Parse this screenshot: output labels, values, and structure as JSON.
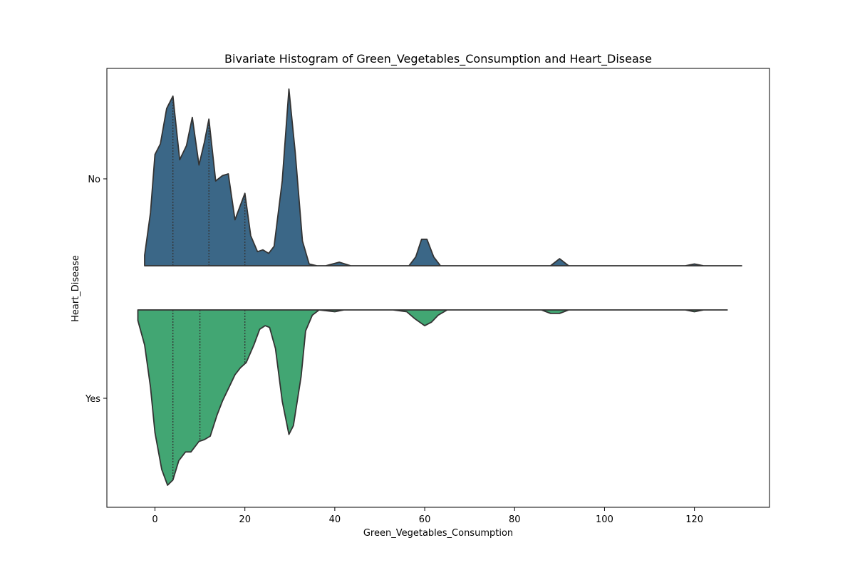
{
  "chart_data": {
    "type": "violin",
    "title": "Bivariate Histogram of Green_Vegetables_Consumption and Heart_Disease",
    "xlabel": "Green_Vegetables_Consumption",
    "ylabel": "Heart_Disease",
    "xlim": [
      -10.7,
      136.7
    ],
    "x_ticks": [
      0,
      20,
      40,
      60,
      80,
      100,
      120
    ],
    "categories": [
      "No",
      "Yes"
    ],
    "grid": false,
    "series": [
      {
        "name": "No",
        "side": "upper",
        "color": "#3b6787",
        "x_range": [
          -2.3,
          130.5
        ],
        "quartiles": [
          4,
          12,
          20
        ],
        "density": [
          [
            -2.3,
            0.06
          ],
          [
            -1.0,
            0.3
          ],
          [
            0.0,
            0.63
          ],
          [
            1.2,
            0.69
          ],
          [
            2.6,
            0.89
          ],
          [
            4.0,
            0.96
          ],
          [
            5.5,
            0.6
          ],
          [
            7.0,
            0.68
          ],
          [
            8.3,
            0.84
          ],
          [
            9.8,
            0.57
          ],
          [
            11.0,
            0.7
          ],
          [
            12.0,
            0.83
          ],
          [
            13.5,
            0.48
          ],
          [
            15.0,
            0.51
          ],
          [
            16.3,
            0.52
          ],
          [
            17.8,
            0.26
          ],
          [
            20.0,
            0.41
          ],
          [
            21.3,
            0.17
          ],
          [
            22.8,
            0.08
          ],
          [
            24.0,
            0.09
          ],
          [
            25.3,
            0.07
          ],
          [
            26.5,
            0.11
          ],
          [
            28.3,
            0.48
          ],
          [
            29.8,
            1.0
          ],
          [
            31.2,
            0.64
          ],
          [
            32.8,
            0.14
          ],
          [
            34.3,
            0.01
          ],
          [
            36.0,
            0.0
          ],
          [
            38.0,
            0.0
          ],
          [
            39.5,
            0.01
          ],
          [
            41.0,
            0.02
          ],
          [
            43.5,
            0.0
          ],
          [
            56.5,
            0.0
          ],
          [
            58.0,
            0.05
          ],
          [
            59.3,
            0.15
          ],
          [
            60.5,
            0.15
          ],
          [
            62.0,
            0.05
          ],
          [
            63.5,
            0.0
          ],
          [
            88.0,
            0.0
          ],
          [
            90.0,
            0.04
          ],
          [
            92.0,
            0.0
          ],
          [
            118.0,
            0.0
          ],
          [
            120.0,
            0.01
          ],
          [
            122.0,
            0.0
          ],
          [
            130.5,
            0.0
          ]
        ]
      },
      {
        "name": "Yes",
        "side": "lower",
        "color": "#42a673",
        "x_range": [
          -3.8,
          127.3
        ],
        "quartiles": [
          4,
          10,
          20
        ],
        "density": [
          [
            -3.8,
            0.06
          ],
          [
            -2.3,
            0.2
          ],
          [
            -1.0,
            0.44
          ],
          [
            0.0,
            0.7
          ],
          [
            1.5,
            0.91
          ],
          [
            2.8,
            1.0
          ],
          [
            4.0,
            0.97
          ],
          [
            5.3,
            0.86
          ],
          [
            6.8,
            0.81
          ],
          [
            8.0,
            0.81
          ],
          [
            9.8,
            0.75
          ],
          [
            11.0,
            0.74
          ],
          [
            12.3,
            0.72
          ],
          [
            13.8,
            0.6
          ],
          [
            15.0,
            0.52
          ],
          [
            16.5,
            0.44
          ],
          [
            17.8,
            0.37
          ],
          [
            19.0,
            0.33
          ],
          [
            20.3,
            0.3
          ],
          [
            22.0,
            0.2
          ],
          [
            23.3,
            0.11
          ],
          [
            24.5,
            0.09
          ],
          [
            25.5,
            0.1
          ],
          [
            26.8,
            0.22
          ],
          [
            28.3,
            0.52
          ],
          [
            29.8,
            0.71
          ],
          [
            30.8,
            0.66
          ],
          [
            32.5,
            0.38
          ],
          [
            33.5,
            0.12
          ],
          [
            35.0,
            0.03
          ],
          [
            36.5,
            0.0
          ],
          [
            40.0,
            0.01
          ],
          [
            42.0,
            0.0
          ],
          [
            53.0,
            0.0
          ],
          [
            56.0,
            0.01
          ],
          [
            57.8,
            0.05
          ],
          [
            60.0,
            0.09
          ],
          [
            61.5,
            0.07
          ],
          [
            63.0,
            0.03
          ],
          [
            65.0,
            0.0
          ],
          [
            86.0,
            0.0
          ],
          [
            88.0,
            0.02
          ],
          [
            90.0,
            0.02
          ],
          [
            92.0,
            0.0
          ],
          [
            118.0,
            0.0
          ],
          [
            120.0,
            0.01
          ],
          [
            122.0,
            0.0
          ],
          [
            127.3,
            0.0
          ]
        ]
      }
    ]
  }
}
